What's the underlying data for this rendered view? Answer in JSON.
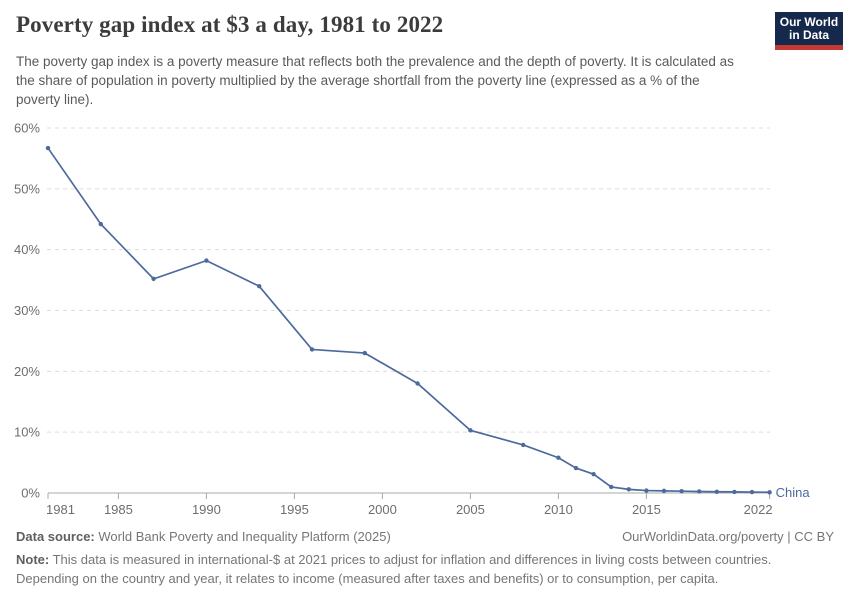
{
  "header": {
    "title": "Poverty gap index at $3 a day, 1981 to 2022",
    "subtitle": "The poverty gap index is a poverty measure that reflects both the prevalence and the depth of poverty. It is calculated as the share of population in poverty multiplied by the average shortfall from the poverty line (expressed as a % of the poverty line).",
    "logo": {
      "line1": "Our World",
      "line2": "in Data",
      "bg_color": "#15294d",
      "bar_color": "#c43a33"
    }
  },
  "chart_data": {
    "type": "line",
    "title": "Poverty gap index at $3 a day, 1981 to 2022",
    "x": [
      1981,
      1984,
      1987,
      1990,
      1993,
      1996,
      1999,
      2002,
      2005,
      2008,
      2010,
      2011,
      2012,
      2013,
      2014,
      2015,
      2016,
      2017,
      2018,
      2019,
      2020,
      2021,
      2022
    ],
    "series": [
      {
        "name": "China",
        "color": "#4C6A9C",
        "values": [
          56.7,
          44.2,
          35.2,
          38.2,
          34.0,
          23.6,
          23.0,
          18.0,
          10.3,
          7.9,
          5.8,
          4.1,
          3.1,
          1.0,
          0.6,
          0.4,
          0.35,
          0.3,
          0.25,
          0.2,
          0.18,
          0.15,
          0.12
        ]
      }
    ],
    "xlabel": "",
    "ylabel": "",
    "ylim": [
      0,
      60
    ],
    "y_ticks": [
      0,
      10,
      20,
      30,
      40,
      50,
      60
    ],
    "y_tick_suffix": "%",
    "x_ticks": [
      1981,
      1985,
      1990,
      1995,
      2000,
      2005,
      2010,
      2015,
      2022
    ],
    "grid": "horizontal-dashed",
    "legend_position": "end-of-line-label",
    "axis_color": "#a8a8a8",
    "grid_color": "#dcdcdc",
    "tick_label_color": "#6e6e6e"
  },
  "footer": {
    "data_source_label": "Data source:",
    "data_source_value": "World Bank Poverty and Inequality Platform (2025)",
    "attribution": "OurWorldinData.org/poverty | CC BY",
    "note_label": "Note:",
    "note_text": "This data is measured in international-$ at 2021 prices to adjust for inflation and differences in living costs between countries. Depending on the country and year, it relates to income (measured after taxes and benefits) or to consumption, per capita."
  }
}
